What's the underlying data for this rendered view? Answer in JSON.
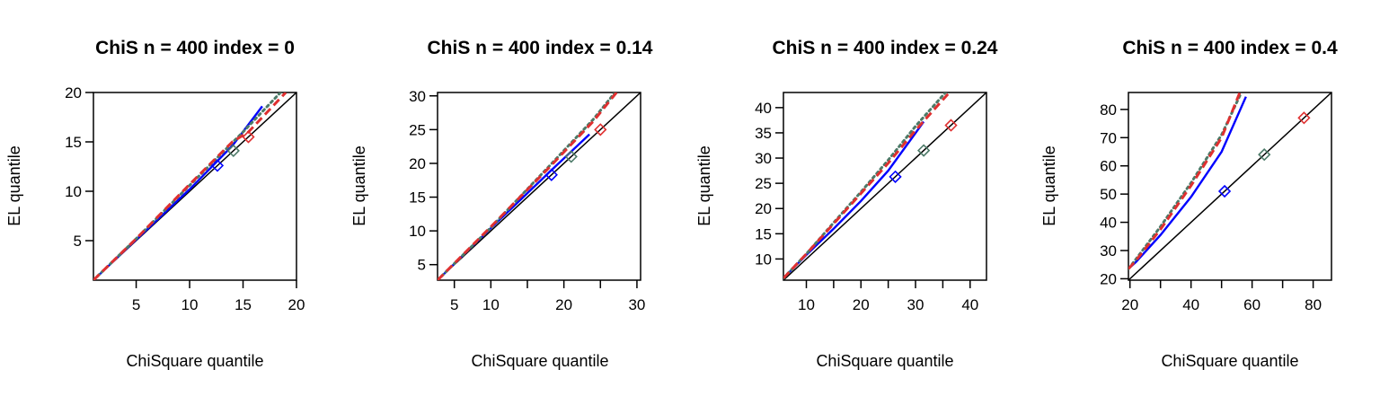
{
  "chart_data": [
    {
      "type": "line",
      "title": "ChiS n = 400 index = 0",
      "xlabel": "ChiSquare quantile",
      "ylabel": "EL quantile",
      "xlim": [
        1,
        20
      ],
      "ylim": [
        1,
        20
      ],
      "xticks": [
        5,
        10,
        15,
        20
      ],
      "yticks": [
        5,
        10,
        15,
        20
      ],
      "series": [
        {
          "color": "#0000ff",
          "style": "solid",
          "x": [
            1,
            5,
            10,
            14,
            16.8
          ],
          "y": [
            1,
            5.1,
            10.2,
            14.6,
            18.6
          ]
        },
        {
          "color": "#4c7a68",
          "style": "dotted",
          "x": [
            1,
            5,
            10,
            15,
            18.5
          ],
          "y": [
            1,
            5.2,
            10.6,
            16.0,
            20
          ]
        },
        {
          "color": "#df3030",
          "style": "dashed",
          "x": [
            1,
            5,
            10,
            14,
            15.5,
            19.0
          ],
          "y": [
            1,
            5.2,
            10.7,
            15.0,
            16.0,
            20
          ]
        }
      ],
      "reference_line": {
        "color": "#000000",
        "x": [
          1,
          20
        ],
        "y": [
          1,
          20
        ]
      },
      "markers": [
        {
          "color": "#0000ff",
          "x": 12.6,
          "y": 12.6
        },
        {
          "color": "#4c7a68",
          "x": 14.1,
          "y": 14.1
        },
        {
          "color": "#df3030",
          "x": 15.5,
          "y": 15.5
        }
      ]
    },
    {
      "type": "line",
      "title": "ChiS n = 400 index = 0.14",
      "xlabel": "ChiSquare quantile",
      "ylabel": "EL quantile",
      "xlim": [
        2.7,
        30.5
      ],
      "ylim": [
        2.7,
        30.5
      ],
      "xticks": [
        5,
        10,
        20,
        30
      ],
      "xticks_unlabeled": [
        15,
        25
      ],
      "yticks": [
        5,
        10,
        15,
        20,
        25,
        30
      ],
      "series": [
        {
          "color": "#0000ff",
          "style": "solid",
          "x": [
            2.7,
            10,
            18,
            23.5
          ],
          "y": [
            2.7,
            10.4,
            18.7,
            24.3
          ]
        },
        {
          "color": "#4c7a68",
          "style": "dotted",
          "x": [
            2.7,
            10,
            18,
            24,
            27
          ],
          "y": [
            2.7,
            10.5,
            19.6,
            26.5,
            30.5
          ]
        },
        {
          "color": "#df3030",
          "style": "dashed",
          "x": [
            2.7,
            10,
            18,
            24,
            27.2
          ],
          "y": [
            2.7,
            10.6,
            19.4,
            26.2,
            30.5
          ]
        }
      ],
      "reference_line": {
        "color": "#000000",
        "x": [
          2.7,
          30.5
        ],
        "y": [
          2.7,
          30.5
        ]
      },
      "markers": [
        {
          "color": "#0000ff",
          "x": 18.3,
          "y": 18.3
        },
        {
          "color": "#4c7a68",
          "x": 21.0,
          "y": 21.0
        },
        {
          "color": "#df3030",
          "x": 25.0,
          "y": 25.0
        }
      ]
    },
    {
      "type": "line",
      "title": "ChiS n = 400 index = 0.24",
      "xlabel": "ChiSquare quantile",
      "ylabel": "EL quantile",
      "xlim": [
        5.8,
        43
      ],
      "ylim": [
        5.8,
        43
      ],
      "xticks": [
        10,
        20,
        30,
        40
      ],
      "xticks_unlabeled": [
        15,
        25,
        35
      ],
      "yticks": [
        10,
        15,
        20,
        25,
        30,
        35,
        40
      ],
      "series": [
        {
          "color": "#0000ff",
          "style": "solid",
          "x": [
            5.8,
            10,
            15,
            20,
            25,
            31.5
          ],
          "y": [
            6.2,
            10.8,
            16.0,
            21.5,
            27.5,
            37.2
          ]
        },
        {
          "color": "#4c7a68",
          "style": "dotted",
          "x": [
            5.8,
            10,
            15,
            20,
            25,
            30,
            35.5
          ],
          "y": [
            6.2,
            11.0,
            17.2,
            23.3,
            29.6,
            36.3,
            43
          ]
        },
        {
          "color": "#df3030",
          "style": "dashed",
          "x": [
            5.8,
            10,
            15,
            20,
            25,
            30,
            36.2
          ],
          "y": [
            6.2,
            11.0,
            17.0,
            23.0,
            29.0,
            35.5,
            43
          ]
        }
      ],
      "reference_line": {
        "color": "#000000",
        "x": [
          5.8,
          43
        ],
        "y": [
          5.8,
          43
        ]
      },
      "markers": [
        {
          "color": "#0000ff",
          "x": 26.3,
          "y": 26.3
        },
        {
          "color": "#4c7a68",
          "x": 31.5,
          "y": 31.5
        },
        {
          "color": "#df3030",
          "x": 36.5,
          "y": 36.5
        }
      ]
    },
    {
      "type": "line",
      "title": "ChiS n = 400 index = 0.4",
      "xlabel": "ChiSquare quantile",
      "ylabel": "EL quantile",
      "xlim": [
        19.5,
        86
      ],
      "ylim": [
        19.5,
        86
      ],
      "xticks": [
        20,
        40,
        60,
        80
      ],
      "xticks_unlabeled": [
        30,
        50,
        70
      ],
      "yticks": [
        20,
        30,
        40,
        50,
        60,
        70,
        80
      ],
      "series": [
        {
          "color": "#0000ff",
          "style": "solid",
          "x": [
            19.5,
            22,
            30,
            40,
            50,
            58
          ],
          "y": [
            23.5,
            26.0,
            35.5,
            49.0,
            65.0,
            84.5
          ]
        },
        {
          "color": "#4c7a68",
          "style": "dotted",
          "x": [
            19.5,
            22,
            30,
            40,
            50,
            56.5
          ],
          "y": [
            23.5,
            27.0,
            38.5,
            54.0,
            71.0,
            86
          ]
        },
        {
          "color": "#df3030",
          "style": "dashed",
          "x": [
            19.5,
            22,
            30,
            40,
            50,
            56
          ],
          "y": [
            23.5,
            26.5,
            37.5,
            53.0,
            70.0,
            86
          ]
        }
      ],
      "reference_line": {
        "color": "#000000",
        "x": [
          19.5,
          86
        ],
        "y": [
          19.5,
          86
        ]
      },
      "markers": [
        {
          "color": "#0000ff",
          "x": 51.0,
          "y": 51.0
        },
        {
          "color": "#4c7a68",
          "x": 64.0,
          "y": 64.0
        },
        {
          "color": "#df3030",
          "x": 77.0,
          "y": 77.0
        }
      ]
    }
  ]
}
